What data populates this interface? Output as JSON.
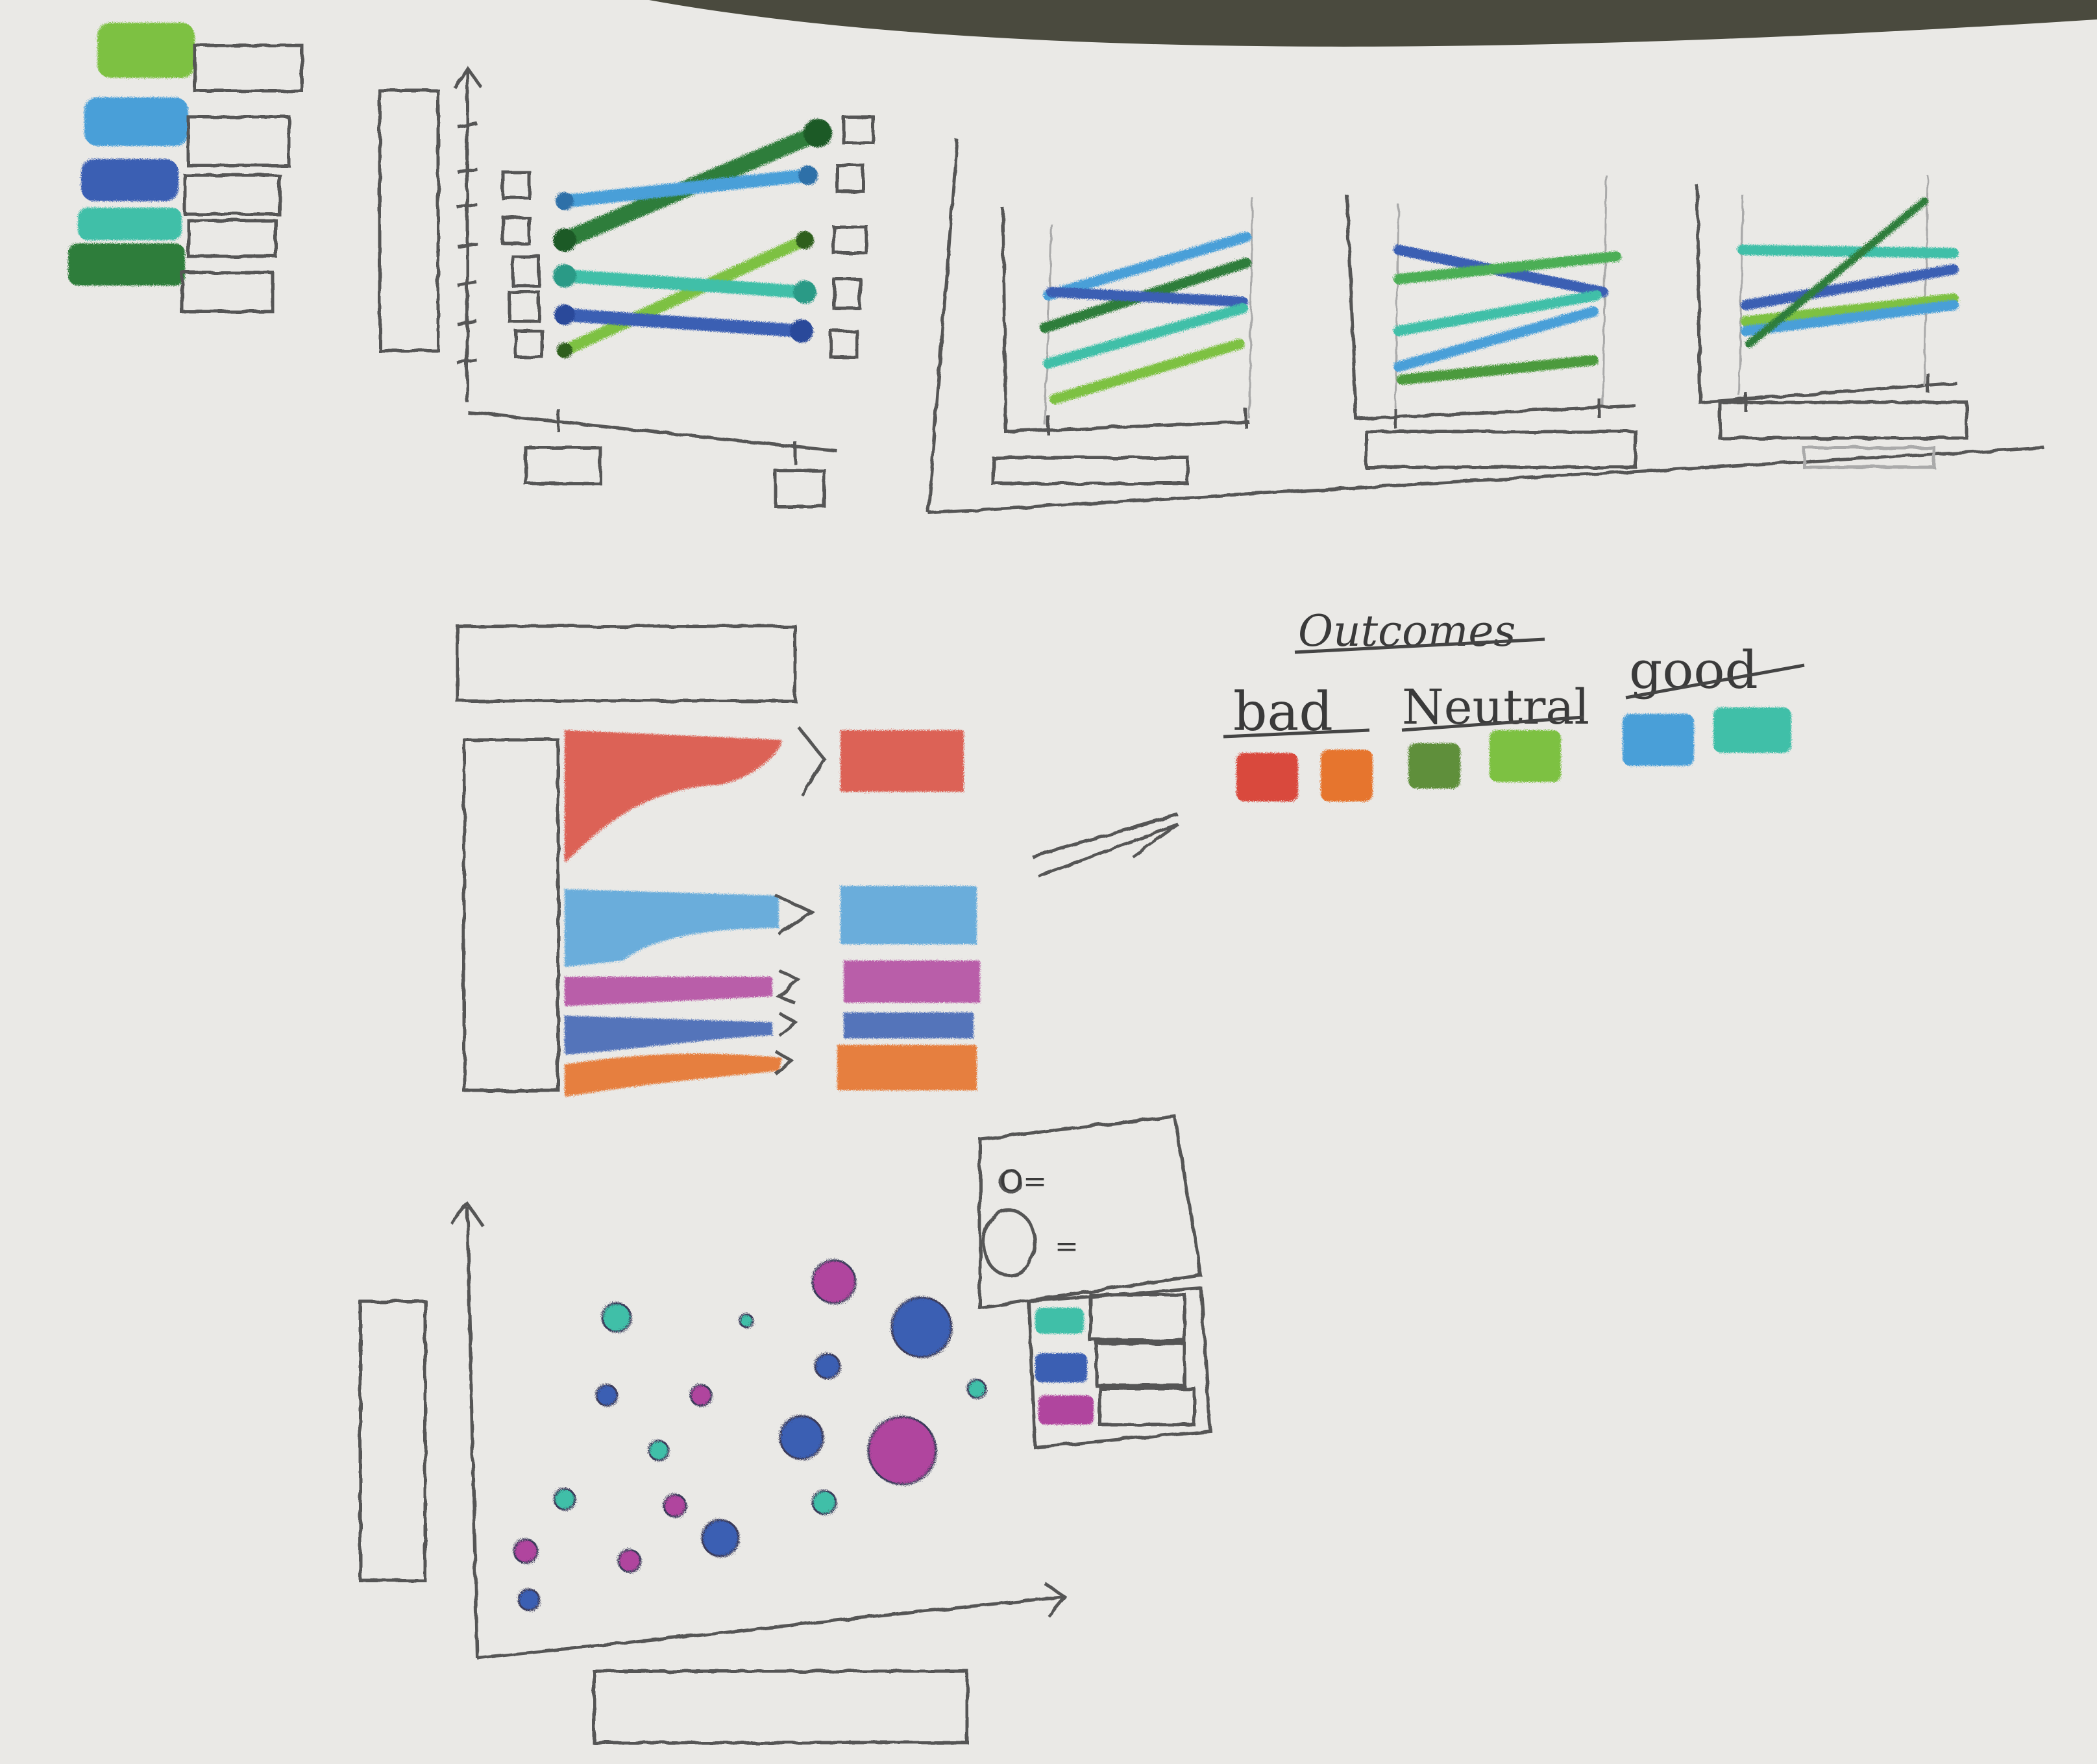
{
  "colors": {
    "paper": "#eae9e6",
    "pencil": "#555555",
    "light_green": "#7dc142",
    "sky_blue": "#4a9fd8",
    "dark_blue": "#3b5fb3",
    "teal": "#3fbfa8",
    "dark_green": "#2f7d3a",
    "red": "#d94a3c",
    "orange": "#e6742f",
    "magenta": "#b0449e",
    "olive_green": "#5f8f3a",
    "lilac": "#c07ab8"
  },
  "legend_note": {
    "heading": "Outcomes",
    "groups": [
      {
        "label": "bad",
        "swatches": [
          "red",
          "orange"
        ]
      },
      {
        "label": "Neutral",
        "swatches": [
          "olive_green",
          "light_green"
        ]
      },
      {
        "label": "good",
        "swatches": [
          "sky_blue",
          "teal"
        ]
      }
    ]
  },
  "bubble_key": {
    "small_symbol": "O=",
    "large_symbol": "="
  },
  "icons": [
    "arrow-icon",
    "placeholder-box-icon",
    "color-swatch-icon"
  ]
}
